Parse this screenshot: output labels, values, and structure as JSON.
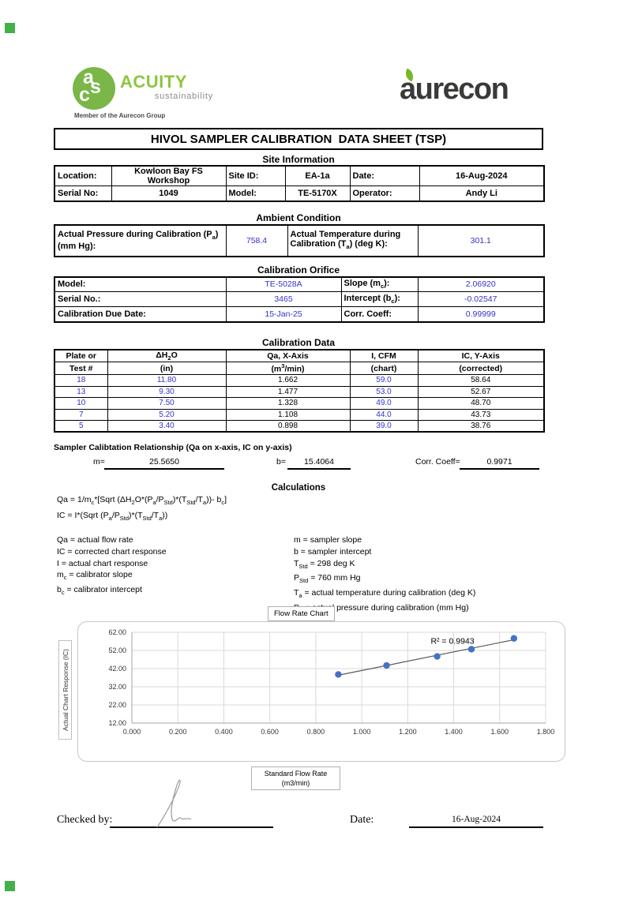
{
  "markers": {
    "green": "#44b04a"
  },
  "logos": {
    "acuity": {
      "monogram_letters": [
        "a",
        "s",
        "c"
      ],
      "name": "ACUITY",
      "tagline": "sustainability",
      "member_line": "Member of the Aurecon Group",
      "green": "#7ab648"
    },
    "aurecon": {
      "name": "aurecon",
      "charcoal": "#3a3a38",
      "leaf_green": "#76b82a"
    }
  },
  "title": "HIVOL SAMPLER CALIBRATION  DATA SHEET (TSP)",
  "site_information": {
    "heading": "Site Information",
    "location_label": "Location:",
    "location_value": "Kowloon Bay FS Workshop",
    "site_id_label": "Site ID:",
    "site_id_value": "EA-1a",
    "date_label": "Date:",
    "date_value": "16-Aug-2024",
    "serial_label": "Serial No:",
    "serial_value": "1049",
    "model_label": "Model:",
    "model_value": "TE-5170X",
    "operator_label": "Operator:",
    "operator_value": "Andy Li"
  },
  "ambient_condition": {
    "heading": "Ambient Condition",
    "pressure_label": "Actual Pressure during Calibration (P<sub>a</sub>)<br>(mm Hg):",
    "pressure_value": "758.4",
    "temperature_label": "Actual Temperature during<br>Calibration (T<sub>a</sub>) (deg K):",
    "temperature_value": "301.1",
    "value_color": "#3333cc"
  },
  "calibration_orifice": {
    "heading": "Calibration Orifice",
    "model_label": "Model:",
    "model_value": "TE-5028A",
    "slope_label": "Slope (m<sub>c</sub>):",
    "slope_value": "2.06920",
    "serial_label": "Serial No.:",
    "serial_value": "3465",
    "intercept_label": "Intercept (b<sub>c</sub>):",
    "intercept_value": "-0.02547",
    "due_label": "Calibration Due Date:",
    "due_value": "15-Jan-25",
    "corr_label": "Corr. Coeff:",
    "corr_value": "0.99999"
  },
  "calibration_data": {
    "heading": "Calibration Data",
    "headers": {
      "col1_top": "Plate or",
      "col1_bot": "Test #",
      "col2_top": "ΔH<sub>2</sub>O",
      "col2_bot": "(in)",
      "col3_top": "Qa, X-Axis",
      "col3_bot": "(m<sup>3</sup>/min)",
      "col4_top": "I, CFM",
      "col4_bot": "(chart)",
      "col5_top": "IC, Y-Axis",
      "col5_bot": "(corrected)"
    },
    "rows": [
      {
        "test": "18",
        "dh2o": "11.80",
        "qa": "1.662",
        "i": "59.0",
        "ic": "58.64"
      },
      {
        "test": "13",
        "dh2o": "9.30",
        "qa": "1.477",
        "i": "53.0",
        "ic": "52.67"
      },
      {
        "test": "10",
        "dh2o": "7.50",
        "qa": "1.328",
        "i": "49.0",
        "ic": "48.70"
      },
      {
        "test": "7",
        "dh2o": "5.20",
        "qa": "1.108",
        "i": "44.0",
        "ic": "43.73"
      },
      {
        "test": "5",
        "dh2o": "3.40",
        "qa": "0.898",
        "i": "39.0",
        "ic": "38.76"
      }
    ]
  },
  "sampler_relationship": {
    "heading": "Sampler Calibtation Relationship (Qa on x-axis, IC on y-axis)",
    "m_label": "m=",
    "m_value": "25.5650",
    "b_label": "b=",
    "b_value": "15.4064",
    "corr_label": "Corr. Coeff=",
    "corr_value": "0.9971"
  },
  "calculations": {
    "heading": "Calculations",
    "formula_qa": "Qa = 1/m<sub>c</sub>*[Sqrt (ΔH<sub>2</sub>O*(P<sub>a</sub>/P<sub>Std</sub>)*(T<sub>Std</sub>/T<sub>a</sub>))- b<sub>c</sub>]",
    "formula_ic": "IC = I*(Sqrt (P<sub>a</sub>/P<sub>Std</sub>)*(T<sub>Std</sub>/T<sub>a</sub>))",
    "defs_left": [
      "Qa = actual flow rate",
      "IC = corrected chart response",
      "I = actual chart response",
      "m<sub>c</sub>  = calibrator slope",
      "b<sub>c</sub>  = calibrator intercept"
    ],
    "defs_right": [
      "m = sampler slope",
      "b  = sampler intercept",
      "T<sub>Std</sub> = 298 deg K",
      "P<sub>Std</sub> = 760 mm Hg",
      "T<sub>a</sub> = actual temperature during calibration (deg K)",
      "P<sub>a</sub> = actual pressure during calibration (mm Hg)"
    ]
  },
  "chart": {
    "title_box": "Flow Rate Chart",
    "y_axis_label": "Actual Chart Response (IC)",
    "x_axis_label_line1": "Standard Flow Rate",
    "x_axis_label_line2": "(m3/min)"
  },
  "chart_data": {
    "type": "scatter",
    "title": "Flow Rate Chart",
    "xlabel": "Standard Flow Rate (m3/min)",
    "ylabel": "Actual Chart Response (IC)",
    "x": [
      0.898,
      1.108,
      1.328,
      1.477,
      1.662
    ],
    "y": [
      38.76,
      43.73,
      48.7,
      52.67,
      58.64
    ],
    "xlim": [
      0,
      1.8
    ],
    "ylim": [
      12,
      62
    ],
    "x_ticks": [
      0,
      0.2,
      0.4,
      0.6,
      0.8,
      1.0,
      1.2,
      1.4,
      1.6,
      1.8
    ],
    "x_tick_labels": [
      "0.000",
      "0.200",
      "0.400",
      "0.600",
      "0.800",
      "1.000",
      "1.200",
      "1.400",
      "1.600",
      "1.800"
    ],
    "y_ticks": [
      12,
      22,
      32,
      42,
      52,
      62
    ],
    "y_tick_labels": [
      "12.00",
      "22.00",
      "32.00",
      "42.00",
      "52.00",
      "62.00"
    ],
    "grid": true,
    "legend": "none",
    "trendline": {
      "slope": 25.565,
      "intercept": 15.4064,
      "r2_label": "R² = 0.9943",
      "x_start": 0.885,
      "x_end": 1.675
    },
    "marker_color": "#4472c4",
    "trendline_color": "#595959"
  },
  "footer": {
    "checked_by_label": "Checked by:",
    "date_label": "Date:",
    "date_value": "16-Aug-2024"
  }
}
